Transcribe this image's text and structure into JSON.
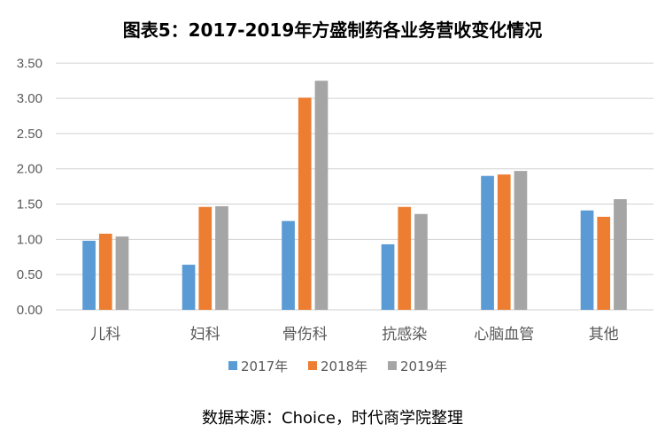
{
  "chart_data": {
    "type": "bar",
    "title": "图表5：2017-2019年方盛制药各业务营收变化情况",
    "source": "数据来源：Choice，时代商学院整理",
    "categories": [
      "儿科",
      "妇科",
      "骨伤科",
      "抗感染",
      "心脑血管",
      "其他"
    ],
    "series": [
      {
        "name": "2017年",
        "color": "#5B9BD5",
        "values": [
          0.98,
          0.64,
          1.26,
          0.93,
          1.9,
          1.41
        ]
      },
      {
        "name": "2018年",
        "color": "#ED7D31",
        "values": [
          1.08,
          1.46,
          3.01,
          1.46,
          1.92,
          1.32
        ]
      },
      {
        "name": "2019年",
        "color": "#A5A5A5",
        "values": [
          1.04,
          1.47,
          3.25,
          1.36,
          1.97,
          1.57
        ]
      }
    ],
    "yticks": [
      "0.00",
      "0.50",
      "1.00",
      "1.50",
      "2.00",
      "2.50",
      "3.00",
      "3.50"
    ],
    "ylim": [
      0,
      3.5
    ],
    "grid": true,
    "legend": "bottom"
  }
}
